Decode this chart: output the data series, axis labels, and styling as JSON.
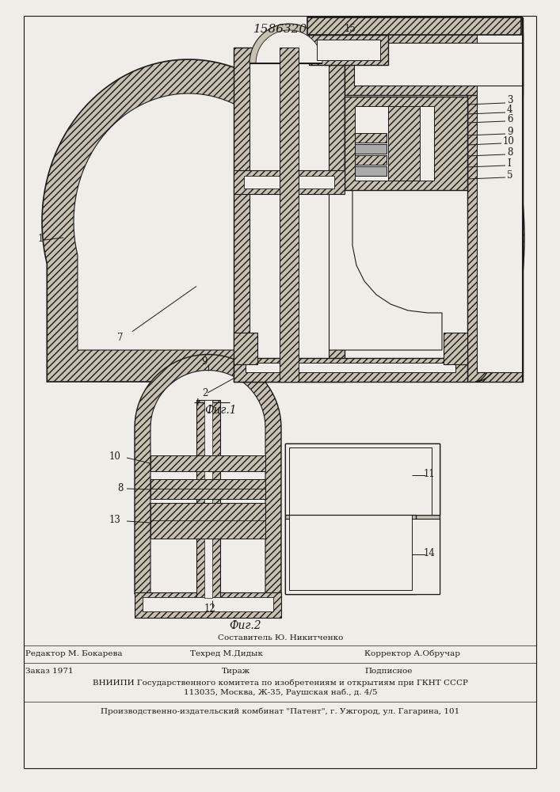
{
  "patent_number": "1586320",
  "bg_color": "#f0ede8",
  "line_color": "#1a1a1a",
  "hatch_color": "#2a2a2a",
  "solid_fill": "#c8c0b0",
  "empty_fill": "#f0ede8",
  "footer_sestavitel": "Составитель Ю. Никитченко",
  "footer_editor": "Редактор М. Бокарева",
  "footer_tekhred": "Техред М.Дидык",
  "footer_korrektor": "Корректор А.Обручар",
  "footer_zakaz": "Заказ 1971",
  "footer_tiraj": "Тираж",
  "footer_podpisnoe": "Подписное",
  "footer_vnipi1": "ВНИИПИ Государственного комитета по изобретениям и открытиям при ГКНТ СССР",
  "footer_vnipi2": "113035, Москва, Ж-35, Раушская наб., д. 4/5",
  "footer_kombinat": "Производственно-издательский комбинат \"Патент\", г. Ужгород, ул. Гагарина, 101",
  "fig1_label": "Фиг.1",
  "fig2_label": "Фиг.2"
}
